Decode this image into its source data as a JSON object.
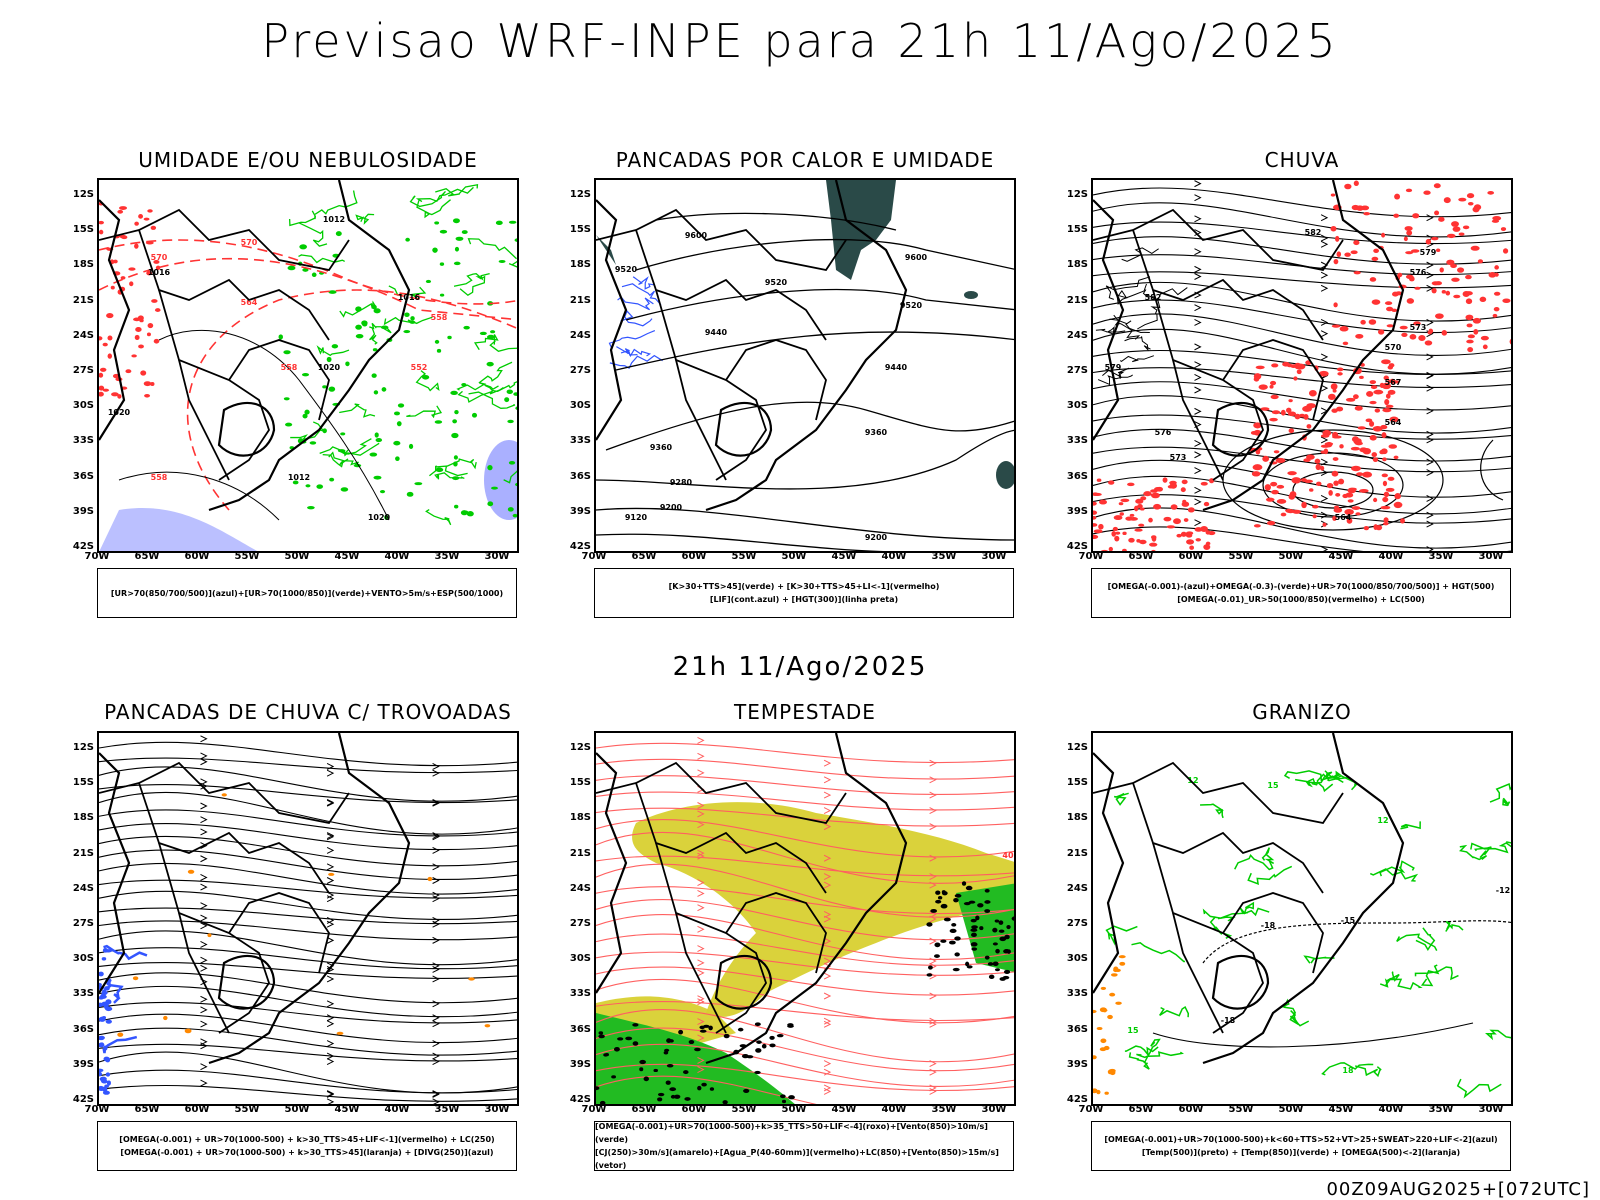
{
  "main_title": "Previsao WRF-INPE  para 21h 11/Ago/2025",
  "middle_title": "21h 11/Ago/2025",
  "footer": "00Z09AUG2025+[072UTC]",
  "lat_labels": [
    "12S",
    "15S",
    "18S",
    "21S",
    "24S",
    "27S",
    "30S",
    "33S",
    "36S",
    "39S",
    "42S"
  ],
  "lon_labels": [
    "70W",
    "65W",
    "60W",
    "55W",
    "50W",
    "45W",
    "40W",
    "35W",
    "30W"
  ],
  "panels": [
    {
      "title": "UMIDADE E/OU NEBULOSIDADE",
      "legend": [
        "[UR>70(850/700/500)](azul)+[UR>70(1000/850)](verde)+VENTO>5m/s+ESP(500/1000)"
      ],
      "contour_labels": [
        "1012",
        "1016",
        "1020",
        "570",
        "564",
        "558",
        "552"
      ]
    },
    {
      "title": "PANCADAS POR CALOR E UMIDADE",
      "legend": [
        "[K>30+TTS>45](verde) + [K>30+TTS>45+LI<-1](vermelho)",
        "[LIF](cont.azul) + [HGT(300)](linha preta)"
      ],
      "contour_labels": [
        "9600",
        "9520",
        "9440",
        "9360",
        "9280",
        "9200",
        "9120"
      ]
    },
    {
      "title": "CHUVA",
      "legend": [
        "[OMEGA(-0.001)-(azul)+OMEGA(-0.3)-(verde)+UR>70(1000/850/700/500)] + HGT(500)",
        "[OMEGA(-0.01)_UR>50(1000/850)(vermelho) + LC(500)"
      ],
      "contour_labels": [
        "582",
        "579",
        "576",
        "573",
        "570",
        "567",
        "564"
      ]
    },
    {
      "title": "PANCADAS DE CHUVA C/ TROVOADAS",
      "legend": [
        "[OMEGA(-0.001) + UR>70(1000-500) + k>30_TTS>45+LIF<-1](vermelho) + LC(250)",
        "[OMEGA(-0.001) + UR>70(1000-500) + k>30_TTS>45](laranja) + [DIVG(250)](azul)"
      ],
      "contour_labels": []
    },
    {
      "title": "TEMPESTADE",
      "legend": [
        "[OMEGA(-0.001)+UR>70(1000-500)+k>35_TTS>50+LIF<-4](roxo)+[Vento(850)>10m/s](verde)",
        "[CJ(250)>30m/s](amarelo)+[Agua_P(40-60mm)](vermelho)+LC(850)+[Vento(850)>15m/s](vetor)"
      ],
      "contour_labels": [
        "40"
      ]
    },
    {
      "title": "GRANIZO",
      "legend": [
        "[OMEGA(-0.001)+UR>70(1000-500)+k<60+TTS>52+VT>25+SWEAT>220+LIF<-2](azul)",
        "[Temp(500)](preto) + [Temp(850)](verde) + [OMEGA(500)<-2](laranja)"
      ],
      "contour_labels": [
        "-18",
        "-15",
        "-12",
        "12",
        "15",
        "18"
      ]
    }
  ],
  "colors": {
    "green": "#00cc00",
    "red": "#ff3333",
    "blue": "#3355ff",
    "lightblue": "#aab0ff",
    "yellow": "#d8d030",
    "darkteal": "#2a4a48",
    "orange": "#ff8800"
  }
}
